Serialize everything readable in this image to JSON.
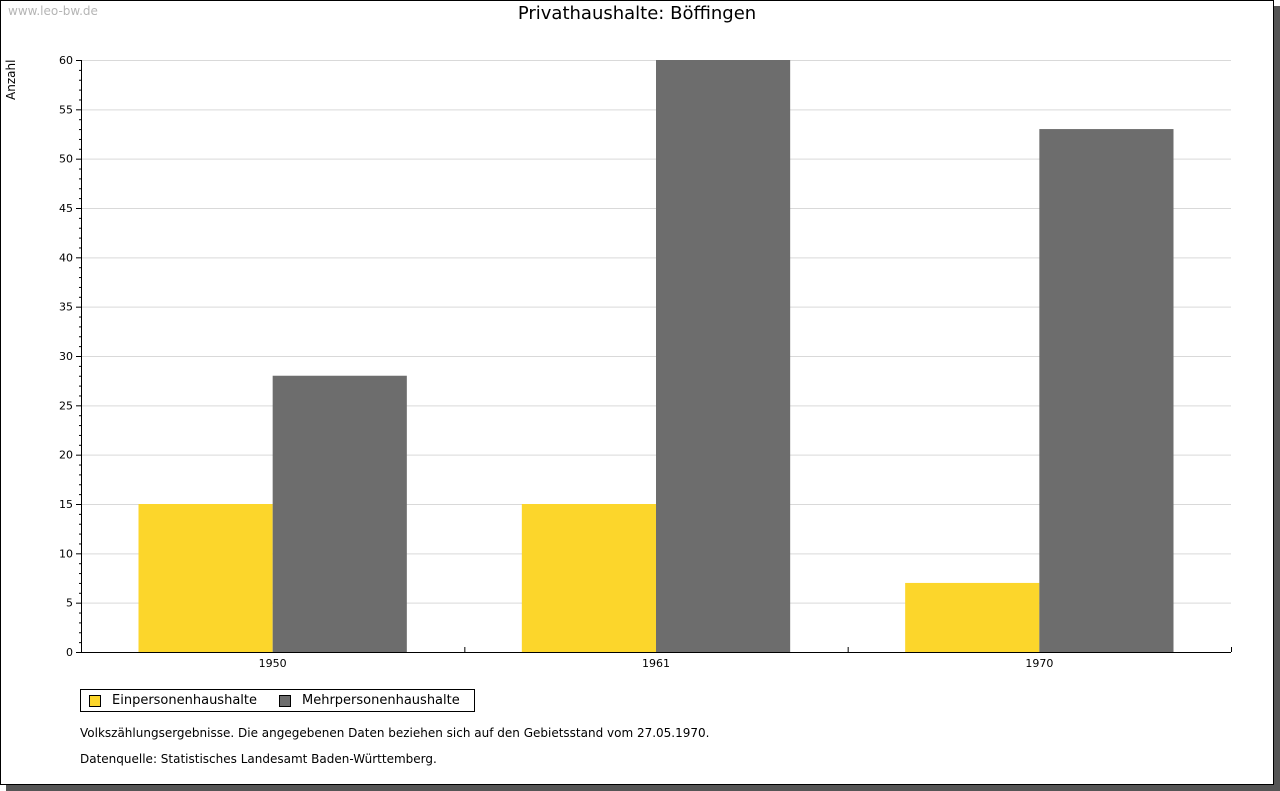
{
  "watermark": "www.leo-bw.de",
  "chart_data": {
    "type": "bar",
    "title": "Privathaushalte: Böffingen",
    "ylabel": "Anzahl",
    "xlabel": "",
    "categories": [
      "1950",
      "1961",
      "1970"
    ],
    "ylim": [
      0,
      60
    ],
    "yticks": [
      0,
      5,
      10,
      15,
      20,
      25,
      30,
      35,
      40,
      45,
      50,
      55,
      60
    ],
    "grid": true,
    "legend_position": "bottom-left",
    "series": [
      {
        "name": "Einpersonenhaushalte",
        "color": "#fcd62b",
        "values": [
          15,
          15,
          7
        ]
      },
      {
        "name": "Mehrpersonenhaushalte",
        "color": "#6d6d6d",
        "values": [
          28,
          60,
          53
        ]
      }
    ]
  },
  "notes": {
    "census": "Volkszählungsergebnisse. Die angegebenen Daten beziehen sich auf den Gebietsstand vom 27.05.1970.",
    "source": "Datenquelle: Statistisches Landesamt Baden-Württemberg."
  }
}
